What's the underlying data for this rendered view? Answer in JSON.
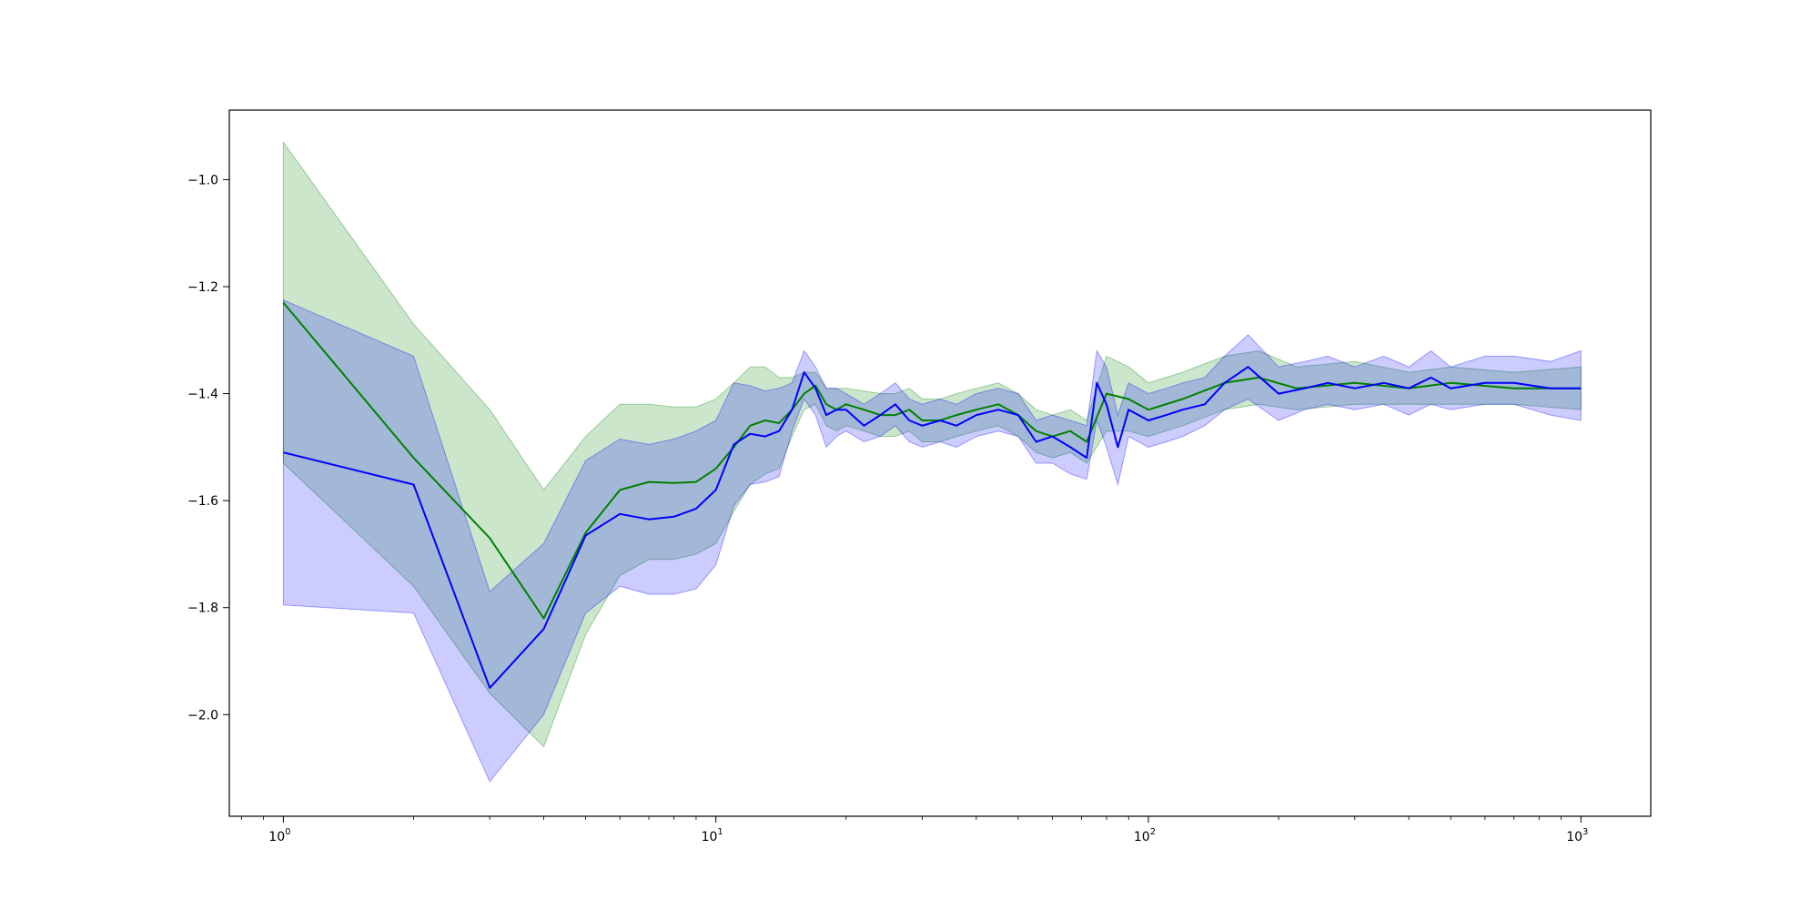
{
  "chart_data": {
    "type": "line",
    "title": "",
    "xlabel": "",
    "ylabel": "",
    "xscale": "log",
    "xlim": [
      0.75,
      1450
    ],
    "ylim": [
      -2.19,
      -0.87
    ],
    "grid": false,
    "x_ticks": [
      {
        "value": 1,
        "base": "10",
        "exp": "0"
      },
      {
        "value": 10,
        "base": "10",
        "exp": "1"
      },
      {
        "value": 100,
        "base": "10",
        "exp": "2"
      },
      {
        "value": 1000,
        "base": "10",
        "exp": "3"
      }
    ],
    "y_ticks": [
      {
        "value": -1.0,
        "label": "−1.0"
      },
      {
        "value": -1.2,
        "label": "−1.2"
      },
      {
        "value": -1.4,
        "label": "−1.4"
      },
      {
        "value": -1.6,
        "label": "−1.6"
      },
      {
        "value": -1.8,
        "label": "−1.8"
      },
      {
        "value": -2.0,
        "label": "−2.0"
      }
    ],
    "series": [
      {
        "color": "#008000",
        "band_color": "#008000",
        "band_opacity": 0.2,
        "x": [
          1,
          2,
          3,
          4,
          5,
          6,
          7,
          8,
          9,
          10,
          11,
          12,
          13,
          14,
          15,
          16,
          17,
          18,
          19,
          20,
          22,
          24,
          26,
          28,
          30,
          33,
          36,
          40,
          45,
          50,
          55,
          60,
          66,
          72,
          80,
          90,
          100,
          120,
          150,
          180,
          220,
          300,
          400,
          500,
          700,
          1000
        ],
        "y": [
          -1.23,
          -1.52,
          -1.67,
          -1.82,
          -1.66,
          -1.58,
          -1.565,
          -1.567,
          -1.565,
          -1.54,
          -1.5,
          -1.46,
          -1.45,
          -1.455,
          -1.43,
          -1.4,
          -1.385,
          -1.42,
          -1.43,
          -1.42,
          -1.43,
          -1.44,
          -1.44,
          -1.43,
          -1.45,
          -1.45,
          -1.44,
          -1.43,
          -1.42,
          -1.44,
          -1.47,
          -1.48,
          -1.47,
          -1.49,
          -1.4,
          -1.41,
          -1.43,
          -1.41,
          -1.38,
          -1.37,
          -1.39,
          -1.38,
          -1.39,
          -1.38,
          -1.39,
          -1.39
        ],
        "low": [
          -1.53,
          -1.76,
          -1.96,
          -2.06,
          -1.85,
          -1.74,
          -1.71,
          -1.71,
          -1.7,
          -1.68,
          -1.62,
          -1.57,
          -1.55,
          -1.54,
          -1.48,
          -1.43,
          -1.42,
          -1.46,
          -1.47,
          -1.46,
          -1.47,
          -1.48,
          -1.48,
          -1.47,
          -1.49,
          -1.49,
          -1.48,
          -1.47,
          -1.46,
          -1.48,
          -1.51,
          -1.52,
          -1.51,
          -1.53,
          -1.47,
          -1.47,
          -1.48,
          -1.46,
          -1.43,
          -1.42,
          -1.43,
          -1.42,
          -1.42,
          -1.42,
          -1.42,
          -1.43
        ],
        "high": [
          -0.93,
          -1.27,
          -1.43,
          -1.58,
          -1.48,
          -1.42,
          -1.42,
          -1.425,
          -1.425,
          -1.41,
          -1.38,
          -1.35,
          -1.35,
          -1.37,
          -1.37,
          -1.36,
          -1.36,
          -1.39,
          -1.39,
          -1.39,
          -1.395,
          -1.4,
          -1.4,
          -1.39,
          -1.41,
          -1.41,
          -1.4,
          -1.39,
          -1.38,
          -1.4,
          -1.43,
          -1.44,
          -1.43,
          -1.45,
          -1.33,
          -1.35,
          -1.38,
          -1.36,
          -1.33,
          -1.32,
          -1.35,
          -1.34,
          -1.36,
          -1.35,
          -1.36,
          -1.35
        ]
      },
      {
        "color": "#0000ff",
        "band_color": "#0000ff",
        "band_opacity": 0.2,
        "x": [
          1,
          2,
          3,
          4,
          5,
          6,
          7,
          8,
          9,
          10,
          11,
          12,
          13,
          14,
          15,
          16,
          17,
          18,
          19,
          20,
          22,
          24,
          26,
          28,
          30,
          33,
          36,
          40,
          45,
          50,
          55,
          60,
          66,
          72,
          76,
          80,
          85,
          90,
          100,
          110,
          120,
          135,
          150,
          170,
          200,
          230,
          260,
          300,
          350,
          400,
          450,
          500,
          600,
          700,
          850,
          1000
        ],
        "y": [
          -1.51,
          -1.57,
          -1.95,
          -1.84,
          -1.665,
          -1.625,
          -1.635,
          -1.63,
          -1.615,
          -1.58,
          -1.495,
          -1.475,
          -1.48,
          -1.47,
          -1.43,
          -1.36,
          -1.39,
          -1.44,
          -1.43,
          -1.43,
          -1.46,
          -1.44,
          -1.42,
          -1.45,
          -1.46,
          -1.45,
          -1.46,
          -1.44,
          -1.43,
          -1.44,
          -1.49,
          -1.48,
          -1.5,
          -1.52,
          -1.38,
          -1.42,
          -1.5,
          -1.43,
          -1.45,
          -1.44,
          -1.43,
          -1.42,
          -1.38,
          -1.35,
          -1.4,
          -1.39,
          -1.38,
          -1.39,
          -1.38,
          -1.39,
          -1.37,
          -1.39,
          -1.38,
          -1.38,
          -1.39,
          -1.39
        ],
        "low": [
          -1.795,
          -1.81,
          -2.125,
          -2.0,
          -1.81,
          -1.76,
          -1.775,
          -1.775,
          -1.765,
          -1.72,
          -1.61,
          -1.57,
          -1.565,
          -1.555,
          -1.47,
          -1.41,
          -1.44,
          -1.5,
          -1.48,
          -1.47,
          -1.49,
          -1.48,
          -1.46,
          -1.49,
          -1.5,
          -1.49,
          -1.5,
          -1.48,
          -1.47,
          -1.48,
          -1.53,
          -1.53,
          -1.55,
          -1.56,
          -1.45,
          -1.5,
          -1.57,
          -1.48,
          -1.5,
          -1.49,
          -1.48,
          -1.46,
          -1.43,
          -1.41,
          -1.45,
          -1.43,
          -1.42,
          -1.43,
          -1.42,
          -1.44,
          -1.42,
          -1.43,
          -1.42,
          -1.42,
          -1.44,
          -1.45
        ],
        "high": [
          -1.225,
          -1.33,
          -1.77,
          -1.68,
          -1.525,
          -1.485,
          -1.495,
          -1.485,
          -1.47,
          -1.45,
          -1.38,
          -1.385,
          -1.395,
          -1.39,
          -1.38,
          -1.32,
          -1.35,
          -1.39,
          -1.39,
          -1.4,
          -1.42,
          -1.4,
          -1.38,
          -1.41,
          -1.42,
          -1.41,
          -1.42,
          -1.4,
          -1.39,
          -1.4,
          -1.45,
          -1.44,
          -1.45,
          -1.46,
          -1.32,
          -1.35,
          -1.44,
          -1.38,
          -1.4,
          -1.39,
          -1.38,
          -1.37,
          -1.33,
          -1.29,
          -1.35,
          -1.34,
          -1.33,
          -1.35,
          -1.33,
          -1.35,
          -1.32,
          -1.35,
          -1.33,
          -1.33,
          -1.34,
          -1.32
        ]
      }
    ]
  }
}
